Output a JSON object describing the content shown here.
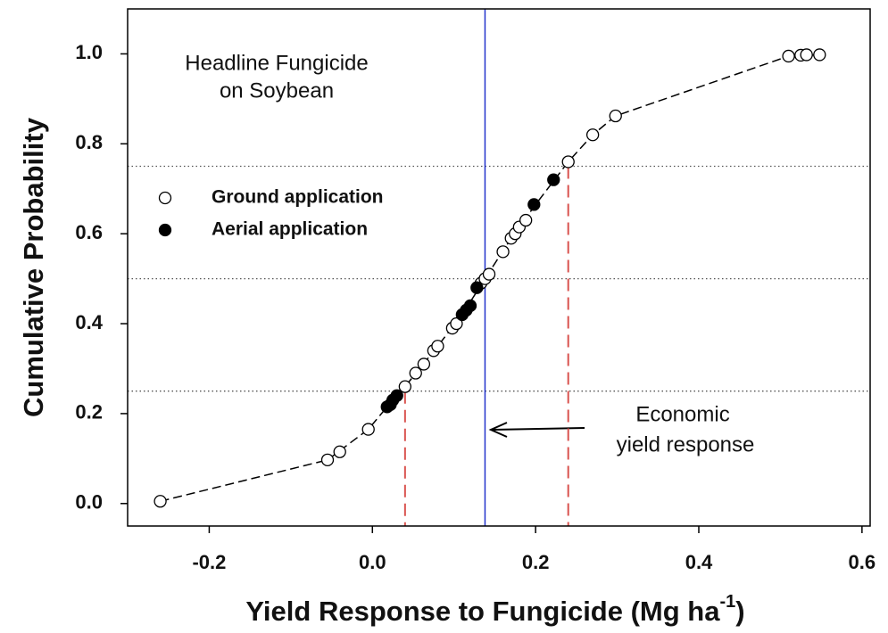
{
  "chart_data": {
    "type": "scatter",
    "title": [
      "Headline Fungicide",
      "on Soybean"
    ],
    "xlabel": {
      "text": "Yield Response to Fungicide (Mg ha",
      "sup": "-1",
      "end": ")"
    },
    "ylabel": "Cumulative Probability",
    "xlim": [
      -0.3,
      0.61
    ],
    "ylim": [
      -0.05,
      1.1
    ],
    "xticks": [
      {
        "value": -0.2,
        "label": "-0.2"
      },
      {
        "value": 0,
        "label": "0.0"
      },
      {
        "value": 0.2,
        "label": "0.2"
      },
      {
        "value": 0.4,
        "label": "0.4"
      },
      {
        "value": 0.6,
        "label": "0.6"
      }
    ],
    "yticks": [
      {
        "value": 0,
        "label": "0.0"
      },
      {
        "value": 0.2,
        "label": "0.2"
      },
      {
        "value": 0.4,
        "label": "0.4"
      },
      {
        "value": 0.6,
        "label": "0.6"
      },
      {
        "value": 0.8,
        "label": "0.8"
      },
      {
        "value": 1,
        "label": "1.0"
      }
    ],
    "legend": "upper left",
    "series": [
      {
        "name": "Ground application",
        "color": "#000000",
        "filled": false,
        "x": [
          -0.26,
          -0.055,
          -0.04,
          -0.005,
          0.04,
          0.053,
          0.063,
          0.075,
          0.08,
          0.098,
          0.103,
          0.133,
          0.138,
          0.143,
          0.16,
          0.17,
          0.175,
          0.18,
          0.188,
          0.24,
          0.27,
          0.298,
          0.51,
          0.525,
          0.532,
          0.548
        ],
        "values": [
          0.005,
          0.097,
          0.115,
          0.165,
          0.26,
          0.29,
          0.31,
          0.34,
          0.35,
          0.39,
          0.4,
          0.49,
          0.5,
          0.51,
          0.56,
          0.59,
          0.6,
          0.615,
          0.63,
          0.76,
          0.82,
          0.862,
          0.995,
          0.997,
          0.998,
          0.998
        ]
      },
      {
        "name": "Aerial application",
        "color": "#000000",
        "filled": true,
        "x": [
          0.018,
          0.022,
          0.025,
          0.03,
          0.11,
          0.115,
          0.12,
          0.128,
          0.198,
          0.222
        ],
        "values": [
          0.215,
          0.22,
          0.23,
          0.24,
          0.42,
          0.43,
          0.44,
          0.48,
          0.665,
          0.72
        ]
      }
    ],
    "curve": {
      "x": [
        -0.26,
        -0.055,
        -0.005,
        0.018,
        0.04,
        0.08,
        0.11,
        0.138,
        0.17,
        0.2,
        0.24,
        0.27,
        0.298,
        0.51,
        0.548
      ],
      "values": [
        0.005,
        0.097,
        0.165,
        0.215,
        0.26,
        0.35,
        0.42,
        0.5,
        0.59,
        0.665,
        0.76,
        0.82,
        0.862,
        0.995,
        0.998
      ]
    },
    "reference_lines": [
      0.25,
      0.5,
      0.75
    ],
    "economic_response": 0.138,
    "quantile_markers": [
      {
        "x": 0.04,
        "y": 0.25
      },
      {
        "x": 0.24,
        "y": 0.75
      }
    ],
    "annotation": [
      "Economic",
      "yield response"
    ]
  }
}
